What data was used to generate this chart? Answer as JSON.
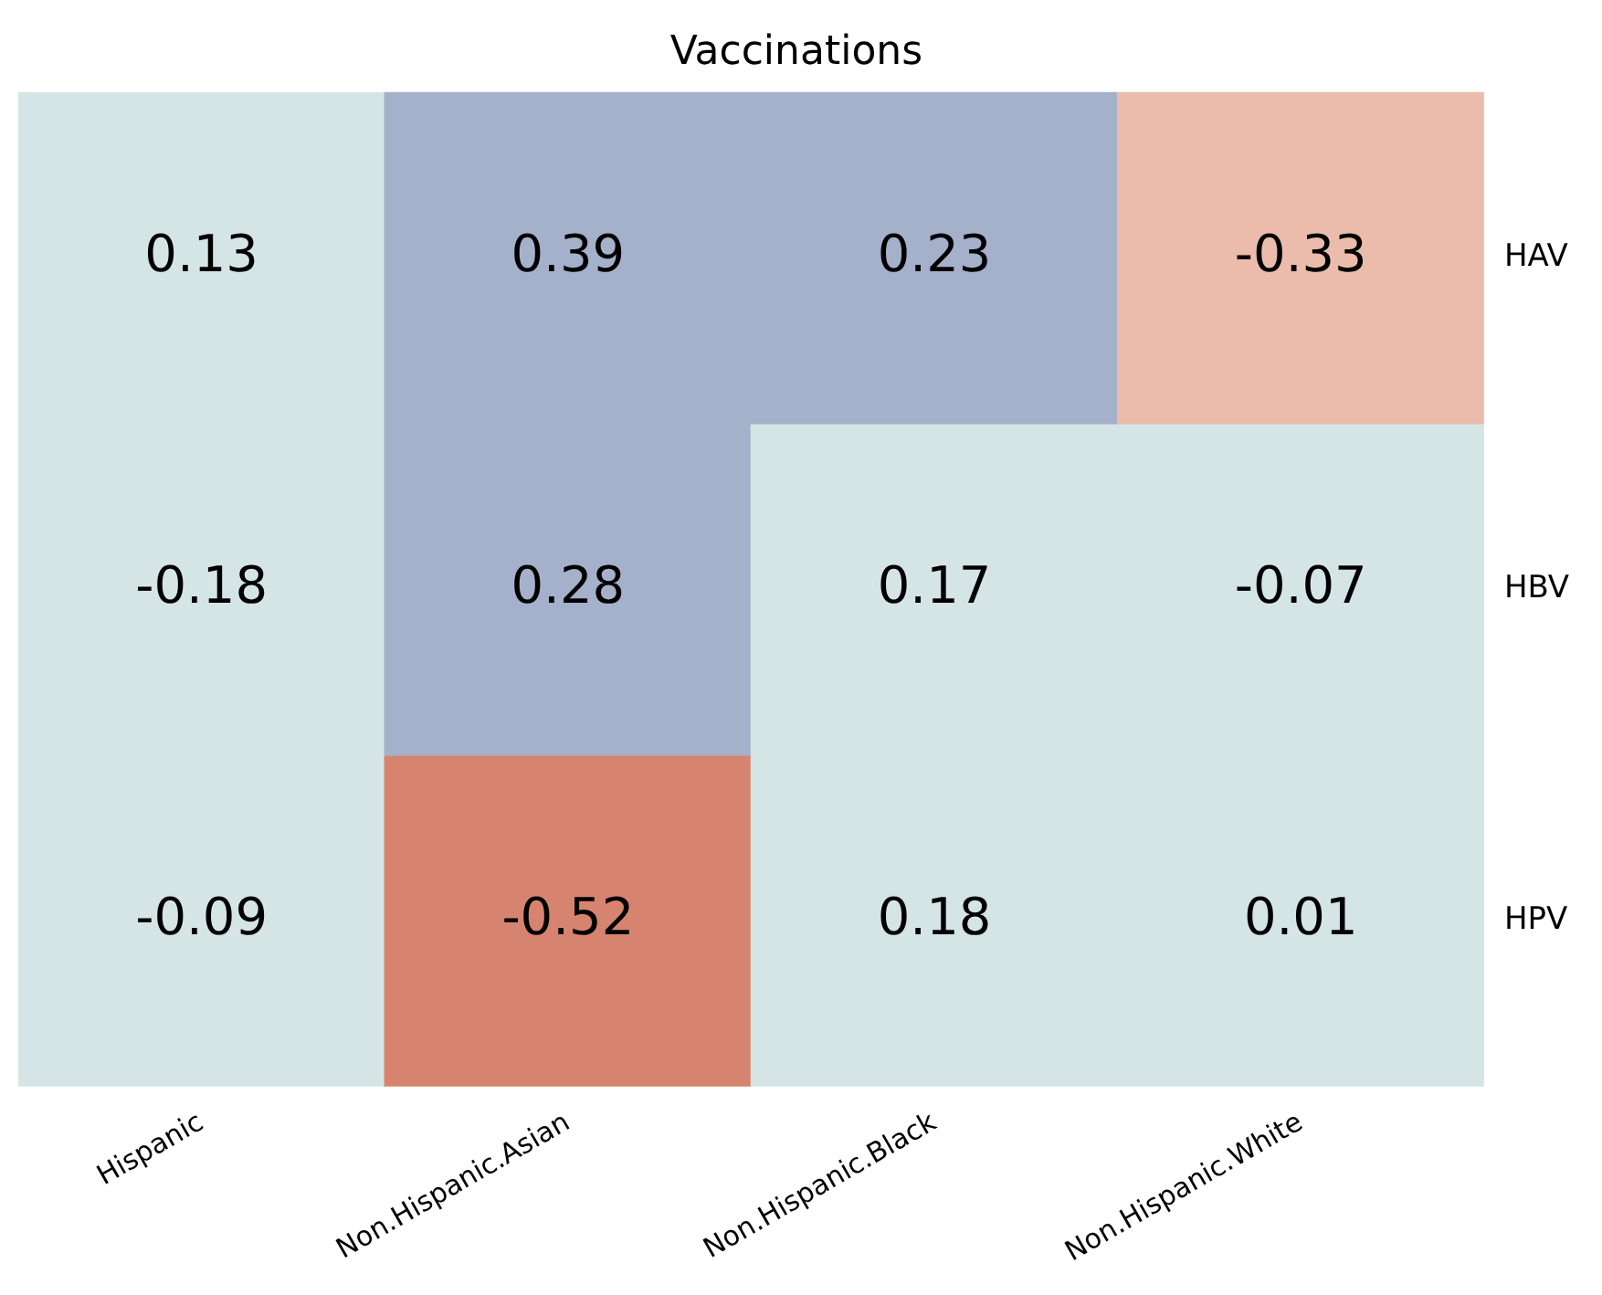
{
  "chart_data": {
    "type": "heatmap",
    "title": "Vaccinations",
    "categories": [
      "Hispanic",
      "Non.Hispanic.Asian",
      "Non.Hispanic.Black",
      "Non.Hispanic.White"
    ],
    "y_categories": [
      "HAV",
      "HBV",
      "HPV"
    ],
    "cells": [
      [
        0.13,
        0.39,
        0.23,
        -0.33
      ],
      [
        -0.18,
        0.28,
        0.17,
        -0.07
      ],
      [
        -0.09,
        -0.52,
        0.18,
        0.01
      ]
    ],
    "data_labels": true
  }
}
